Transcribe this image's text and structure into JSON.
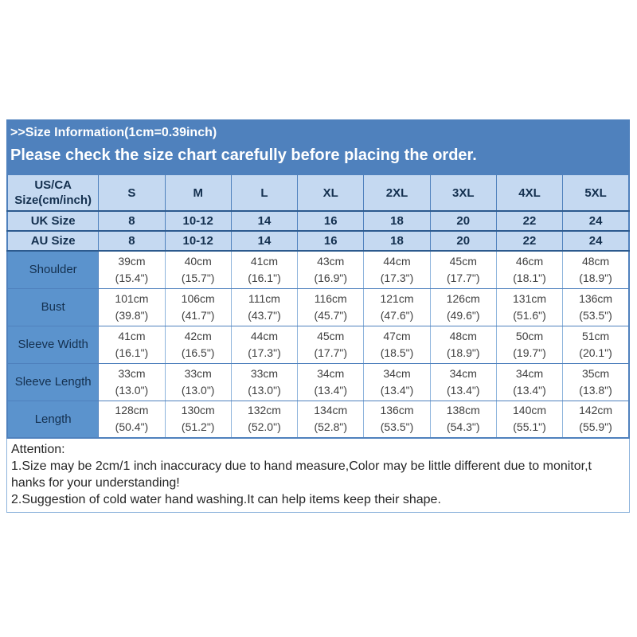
{
  "header": {
    "title": ">>Size Information(1cm=0.39inch)",
    "subtitle": "Please check the size chart carefully before placing the order."
  },
  "table": {
    "header_row": {
      "label": [
        "US/CA",
        "Size(cm/inch)"
      ],
      "sizes": [
        "S",
        "M",
        "L",
        "XL",
        "2XL",
        "3XL",
        "4XL",
        "5XL"
      ]
    },
    "conversion_rows": [
      {
        "label": "UK Size",
        "values": [
          "8",
          "10-12",
          "14",
          "16",
          "18",
          "20",
          "22",
          "24"
        ]
      },
      {
        "label": "AU Size",
        "values": [
          "8",
          "10-12",
          "14",
          "16",
          "18",
          "20",
          "22",
          "24"
        ]
      }
    ],
    "measurement_rows": [
      {
        "label": "Shoulder",
        "values": [
          {
            "cm": "39cm",
            "inch": "(15.4\")"
          },
          {
            "cm": "40cm",
            "inch": "(15.7\")"
          },
          {
            "cm": "41cm",
            "inch": "(16.1\")"
          },
          {
            "cm": "43cm",
            "inch": "(16.9\")"
          },
          {
            "cm": "44cm",
            "inch": "(17.3\")"
          },
          {
            "cm": "45cm",
            "inch": "(17.7\")"
          },
          {
            "cm": "46cm",
            "inch": "(18.1\")"
          },
          {
            "cm": "48cm",
            "inch": "(18.9\")"
          }
        ]
      },
      {
        "label": "Bust",
        "values": [
          {
            "cm": "101cm",
            "inch": "(39.8\")"
          },
          {
            "cm": "106cm",
            "inch": "(41.7\")"
          },
          {
            "cm": "111cm",
            "inch": "(43.7\")"
          },
          {
            "cm": "116cm",
            "inch": "(45.7\")"
          },
          {
            "cm": "121cm",
            "inch": "(47.6\")"
          },
          {
            "cm": "126cm",
            "inch": "(49.6\")"
          },
          {
            "cm": "131cm",
            "inch": "(51.6\")"
          },
          {
            "cm": "136cm",
            "inch": "(53.5\")"
          }
        ]
      },
      {
        "label": "Sleeve Width",
        "values": [
          {
            "cm": "41cm",
            "inch": "(16.1\")"
          },
          {
            "cm": "42cm",
            "inch": "(16.5\")"
          },
          {
            "cm": "44cm",
            "inch": "(17.3\")"
          },
          {
            "cm": "45cm",
            "inch": "(17.7\")"
          },
          {
            "cm": "47cm",
            "inch": "(18.5\")"
          },
          {
            "cm": "48cm",
            "inch": "(18.9\")"
          },
          {
            "cm": "50cm",
            "inch": "(19.7\")"
          },
          {
            "cm": "51cm",
            "inch": "(20.1\")"
          }
        ]
      },
      {
        "label": "Sleeve Length",
        "values": [
          {
            "cm": "33cm",
            "inch": "(13.0\")"
          },
          {
            "cm": "33cm",
            "inch": "(13.0\")"
          },
          {
            "cm": "33cm",
            "inch": "(13.0\")"
          },
          {
            "cm": "34cm",
            "inch": "(13.4\")"
          },
          {
            "cm": "34cm",
            "inch": "(13.4\")"
          },
          {
            "cm": "34cm",
            "inch": "(13.4\")"
          },
          {
            "cm": "34cm",
            "inch": "(13.4\")"
          },
          {
            "cm": "35cm",
            "inch": "(13.8\")"
          }
        ]
      },
      {
        "label": "Length",
        "values": [
          {
            "cm": "128cm",
            "inch": "(50.4\")"
          },
          {
            "cm": "130cm",
            "inch": "(51.2\")"
          },
          {
            "cm": "132cm",
            "inch": "(52.0\")"
          },
          {
            "cm": "134cm",
            "inch": "(52.8\")"
          },
          {
            "cm": "136cm",
            "inch": "(53.5\")"
          },
          {
            "cm": "138cm",
            "inch": "(54.3\")"
          },
          {
            "cm": "140cm",
            "inch": "(55.1\")"
          },
          {
            "cm": "142cm",
            "inch": "(55.9\")"
          }
        ]
      }
    ]
  },
  "attention": {
    "lines": [
      "Attention:",
      "1.Size may be 2cm/1 inch inaccuracy due to hand measure,Color may be little different due to monitor,t",
      "hanks for your understanding!",
      "2.Suggestion of cold water hand washing.It can help items keep their shape."
    ]
  },
  "colors": {
    "band_blue": "#4f81bd",
    "label_cell_blue": "#5b93cd",
    "light_cell_blue": "#c5d9f1",
    "dark_border": "#2c5a8e",
    "mid_border": "#4f81bd",
    "light_border": "#8eb4dc",
    "header_text": "#14304f",
    "value_text": "#3f3f3f",
    "attention_text": "#262626"
  }
}
